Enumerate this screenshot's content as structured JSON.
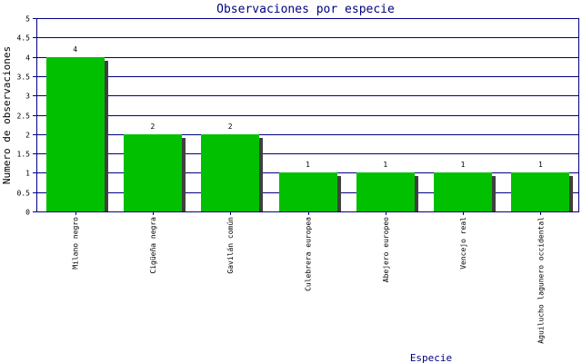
{
  "chart_data": {
    "type": "bar",
    "title": "Observaciones por especie",
    "xlabel": "Especie",
    "ylabel": "Numero de observaciones",
    "ylim": [
      0,
      5
    ],
    "ytick_step": 0.5,
    "yticks": [
      "0",
      "0.5",
      "1",
      "1.5",
      "2",
      "2.5",
      "3",
      "3.5",
      "4",
      "4.5",
      "5"
    ],
    "grid": true,
    "categories": [
      "Milano negro",
      "Cigüeña negra",
      "Gavilán común",
      "Culebrera europea",
      "Abejero europeo",
      "Vencejo real",
      "Aguilucho lagunero occidental"
    ],
    "values": [
      4,
      2,
      2,
      1,
      1,
      1,
      1
    ],
    "value_labels": [
      "4",
      "2",
      "2",
      "1",
      "1",
      "1",
      "1"
    ],
    "colors": {
      "bar": "#00c000",
      "shadow": "#404040",
      "axis": "#000080",
      "grid": "#000080",
      "title": "#000080",
      "text": "#000000"
    }
  }
}
